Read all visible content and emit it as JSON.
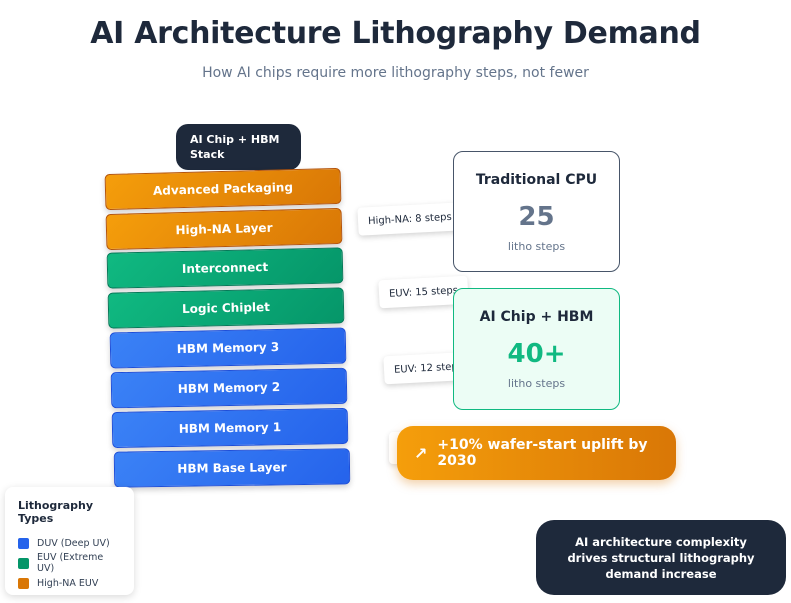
{
  "title": "AI Architecture Lithography Demand",
  "subtitle": "How AI chips require more lithography steps, not fewer",
  "stack_label": "AI Chip + HBM Stack",
  "layers": [
    {
      "name": "Advanced Packaging",
      "type": "High-NA EUV"
    },
    {
      "name": "High-NA Layer",
      "type": "High-NA EUV"
    },
    {
      "name": "Interconnect",
      "type": "EUV"
    },
    {
      "name": "Logic Chiplet",
      "type": "EUV"
    },
    {
      "name": "HBM Memory 3",
      "type": "DUV"
    },
    {
      "name": "HBM Memory 2",
      "type": "DUV"
    },
    {
      "name": "HBM Memory 1",
      "type": "DUV"
    },
    {
      "name": "HBM Base Layer",
      "type": "DUV"
    }
  ],
  "step_tags": {
    "high_na": "High-NA: 8 steps",
    "euv_15": "EUV: 15 steps",
    "euv_12": "EUV: 12 steps"
  },
  "comparison": {
    "traditional": {
      "title": "Traditional CPU",
      "value": "25",
      "unit": "litho steps"
    },
    "ai": {
      "title": "AI Chip + HBM",
      "value": "40+",
      "unit": "litho steps"
    }
  },
  "uplift": {
    "icon": "arrow-up-right-icon",
    "text": "+10% wafer-start uplift by 2030"
  },
  "legend": {
    "title": "Lithography Types",
    "items": [
      {
        "label": "DUV (Deep UV)",
        "color": "#2563eb"
      },
      {
        "label": "EUV (Extreme UV)",
        "color": "#059669"
      },
      {
        "label": "High-NA EUV",
        "color": "#d97706"
      }
    ]
  },
  "callout": "AI architecture complexity drives structural lithography demand increase",
  "colors": {
    "duv": "#2563eb",
    "euv": "#059669",
    "high_na": "#d97706",
    "dark": "#1e293b"
  }
}
